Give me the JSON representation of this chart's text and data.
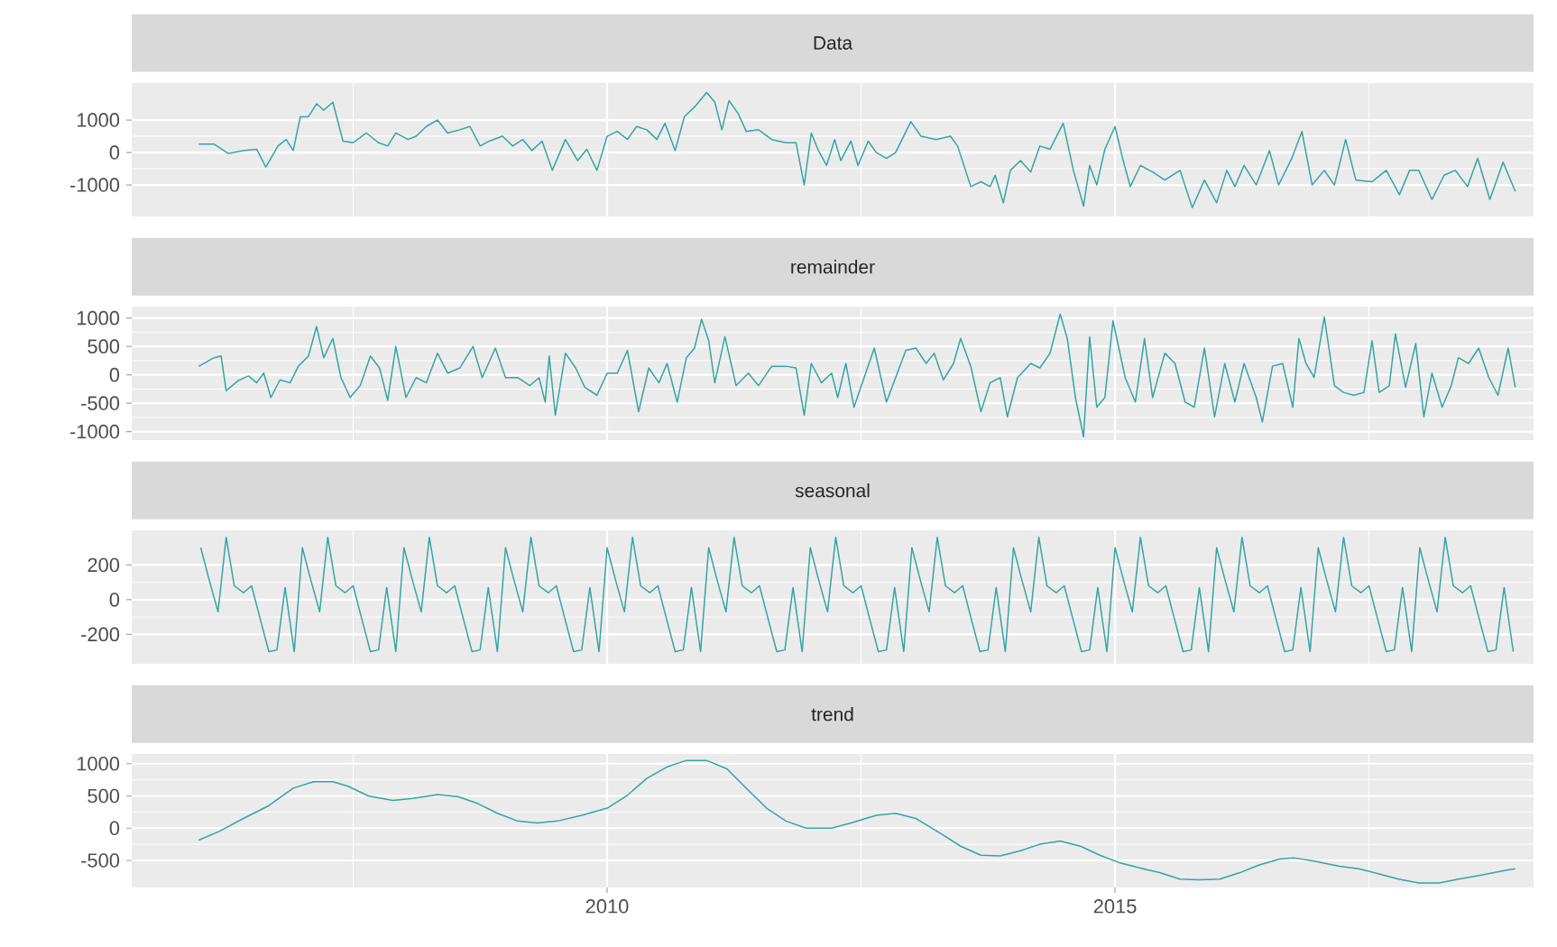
{
  "chart_data": [
    {
      "type": "line",
      "title": "Data",
      "color": "#35a4a4",
      "grid": true,
      "tick_labels": "y",
      "xlim": [
        2005.32,
        2019.12
      ],
      "ylim": [
        -1970,
        2140
      ],
      "xticks": [
        {
          "value": 2007.5,
          "label": null
        },
        2010,
        {
          "value": 2012.5,
          "label": null
        },
        2015,
        {
          "value": 2017.5,
          "label": null
        }
      ],
      "yticks": [
        -1000,
        0,
        1000
      ],
      "x": [
        2005.98,
        2006.13,
        2006.27,
        2006.42,
        2006.55,
        2006.64,
        2006.76,
        2006.84,
        2006.91,
        2006.98,
        2007.06,
        2007.14,
        2007.21,
        2007.3,
        2007.4,
        2007.5,
        2007.63,
        2007.75,
        2007.84,
        2007.92,
        2008.04,
        2008.12,
        2008.22,
        2008.33,
        2008.43,
        2008.55,
        2008.65,
        2008.75,
        2008.84,
        2008.97,
        2009.07,
        2009.17,
        2009.26,
        2009.36,
        2009.46,
        2009.59,
        2009.71,
        2009.8,
        2009.9,
        2010.0,
        2010.1,
        2010.2,
        2010.29,
        2010.39,
        2010.49,
        2010.57,
        2010.67,
        2010.76,
        2010.86,
        2010.98,
        2011.06,
        2011.13,
        2011.2,
        2011.29,
        2011.37,
        2011.49,
        2011.62,
        2011.76,
        2011.86,
        2011.94,
        2012.01,
        2012.08,
        2012.16,
        2012.24,
        2012.3,
        2012.4,
        2012.47,
        2012.57,
        2012.65,
        2012.75,
        2012.84,
        2012.99,
        2013.09,
        2013.24,
        2013.38,
        2013.45,
        2013.58,
        2013.68,
        2013.77,
        2013.82,
        2013.9,
        2013.97,
        2014.07,
        2014.17,
        2014.26,
        2014.36,
        2014.49,
        2014.59,
        2014.69,
        2014.75,
        2014.82,
        2014.9,
        2015.0,
        2015.08,
        2015.15,
        2015.25,
        2015.37,
        2015.49,
        2015.64,
        2015.76,
        2015.88,
        2016.0,
        2016.1,
        2016.18,
        2016.27,
        2016.39,
        2016.52,
        2016.61,
        2016.74,
        2016.84,
        2016.94,
        2017.06,
        2017.16,
        2017.27,
        2017.37,
        2017.53,
        2017.67,
        2017.8,
        2017.9,
        2017.99,
        2018.12,
        2018.24,
        2018.35,
        2018.47,
        2018.57,
        2018.69,
        2018.82,
        2018.94
      ],
      "values": [
        260,
        260,
        -30,
        60,
        100,
        -450,
        200,
        400,
        60,
        1100,
        1100,
        1500,
        1300,
        1550,
        350,
        300,
        600,
        300,
        200,
        600,
        400,
        500,
        800,
        1000,
        600,
        700,
        800,
        200,
        350,
        500,
        200,
        400,
        60,
        350,
        -550,
        400,
        -250,
        100,
        -550,
        500,
        650,
        400,
        800,
        700,
        400,
        900,
        60,
        1100,
        1400,
        1850,
        1550,
        700,
        1600,
        1200,
        650,
        700,
        400,
        300,
        300,
        -1000,
        600,
        60,
        -400,
        400,
        -250,
        350,
        -400,
        350,
        0,
        -180,
        0,
        950,
        500,
        400,
        500,
        200,
        -1050,
        -900,
        -1050,
        -700,
        -1550,
        -550,
        -250,
        -600,
        200,
        100,
        900,
        -550,
        -1650,
        -400,
        -1000,
        100,
        800,
        -250,
        -1050,
        -400,
        -600,
        -850,
        -550,
        -1700,
        -850,
        -1550,
        -550,
        -1050,
        -400,
        -1000,
        60,
        -1000,
        -180,
        650,
        -1000,
        -550,
        -1000,
        400,
        -850,
        -900,
        -550,
        -1300,
        -550,
        -550,
        -1450,
        -700,
        -550,
        -1050,
        -180,
        -1450,
        -300,
        -1200
      ]
    },
    {
      "type": "line",
      "title": "remainder",
      "color": "#35a4a4",
      "grid": true,
      "tick_labels": "y",
      "xlim": [
        2005.32,
        2019.12
      ],
      "ylim": [
        -1150,
        1200
      ],
      "xticks": [
        {
          "value": 2007.5,
          "label": null
        },
        2010,
        {
          "value": 2012.5,
          "label": null
        },
        2015,
        {
          "value": 2017.5,
          "label": null
        }
      ],
      "yticks": [
        -1000,
        -500,
        0,
        500,
        1000
      ],
      "x": [
        2005.98,
        2006.13,
        2006.2,
        2006.25,
        2006.37,
        2006.47,
        2006.55,
        2006.62,
        2006.69,
        2006.78,
        2006.88,
        2006.96,
        2007.06,
        2007.14,
        2007.21,
        2007.3,
        2007.38,
        2007.47,
        2007.57,
        2007.67,
        2007.76,
        2007.84,
        2007.92,
        2008.02,
        2008.12,
        2008.22,
        2008.33,
        2008.43,
        2008.55,
        2008.68,
        2008.77,
        2008.9,
        2009.0,
        2009.12,
        2009.24,
        2009.33,
        2009.39,
        2009.43,
        2009.49,
        2009.59,
        2009.69,
        2009.78,
        2009.9,
        2010.0,
        2010.1,
        2010.2,
        2010.31,
        2010.41,
        2010.51,
        2010.59,
        2010.69,
        2010.78,
        2010.86,
        2010.93,
        2011.0,
        2011.06,
        2011.16,
        2011.27,
        2011.39,
        2011.49,
        2011.62,
        2011.76,
        2011.86,
        2011.94,
        2012.01,
        2012.11,
        2012.21,
        2012.27,
        2012.35,
        2012.43,
        2012.53,
        2012.63,
        2012.75,
        2012.84,
        2012.94,
        2013.04,
        2013.14,
        2013.22,
        2013.31,
        2013.41,
        2013.48,
        2013.58,
        2013.68,
        2013.77,
        2013.87,
        2013.94,
        2014.04,
        2014.17,
        2014.26,
        2014.36,
        2014.46,
        2014.53,
        2014.61,
        2014.69,
        2014.75,
        2014.82,
        2014.9,
        2014.98,
        2015.1,
        2015.2,
        2015.29,
        2015.37,
        2015.49,
        2015.59,
        2015.69,
        2015.78,
        2015.88,
        2015.98,
        2016.08,
        2016.18,
        2016.27,
        2016.39,
        2016.45,
        2016.55,
        2016.65,
        2016.75,
        2016.81,
        2016.88,
        2016.96,
        2017.06,
        2017.16,
        2017.25,
        2017.35,
        2017.45,
        2017.53,
        2017.6,
        2017.7,
        2017.76,
        2017.86,
        2017.96,
        2018.04,
        2018.12,
        2018.22,
        2018.31,
        2018.38,
        2018.48,
        2018.58,
        2018.68,
        2018.77,
        2018.87,
        2018.94
      ],
      "values": [
        150,
        300,
        330,
        -280,
        -100,
        -20,
        -140,
        30,
        -400,
        -90,
        -140,
        150,
        330,
        850,
        300,
        640,
        -50,
        -400,
        -190,
        330,
        120,
        -450,
        500,
        -400,
        -50,
        -140,
        380,
        30,
        120,
        500,
        -50,
        470,
        -50,
        -50,
        -190,
        -50,
        -480,
        330,
        -710,
        380,
        120,
        -220,
        -360,
        30,
        30,
        430,
        -650,
        120,
        -140,
        200,
        -480,
        300,
        470,
        980,
        600,
        -140,
        670,
        -190,
        30,
        -190,
        150,
        150,
        120,
        -710,
        200,
        -140,
        30,
        -400,
        200,
        -570,
        -50,
        470,
        -480,
        -50,
        430,
        470,
        200,
        380,
        -90,
        200,
        640,
        150,
        -650,
        -140,
        -50,
        -740,
        -50,
        200,
        120,
        380,
        1070,
        640,
        -400,
        -1090,
        670,
        -570,
        -400,
        950,
        -50,
        -480,
        640,
        -400,
        380,
        200,
        -480,
        -570,
        470,
        -740,
        200,
        -480,
        200,
        -400,
        -830,
        150,
        200,
        -570,
        640,
        200,
        -50,
        1020,
        -190,
        -310,
        -360,
        -310,
        600,
        -310,
        -190,
        720,
        -220,
        550,
        -740,
        30,
        -570,
        -190,
        300,
        200,
        470,
        -50,
        -360,
        470,
        -220
      ]
    },
    {
      "type": "line",
      "title": "seasonal",
      "color": "#35a4a4",
      "grid": true,
      "tick_labels": "y",
      "xlim": [
        2005.32,
        2019.12
      ],
      "ylim": [
        -370,
        400
      ],
      "xticks": [
        {
          "value": 2007.5,
          "label": null
        },
        2010,
        {
          "value": 2012.5,
          "label": null
        },
        2015,
        {
          "value": 2017.5,
          "label": null
        }
      ],
      "yticks": [
        -200,
        0,
        200
      ],
      "x": [
        2006.0,
        2006.08,
        2006.17,
        2006.25,
        2006.33,
        2006.42,
        2006.5,
        2006.58,
        2006.67,
        2006.75,
        2006.83,
        2006.92,
        2007.0,
        2007.08,
        2007.17,
        2007.25,
        2007.33,
        2007.42,
        2007.5,
        2007.58,
        2007.67,
        2007.75,
        2007.83,
        2007.92,
        2008.0,
        2008.08,
        2008.17,
        2008.25,
        2008.33,
        2008.42,
        2008.5,
        2008.58,
        2008.67,
        2008.75,
        2008.83,
        2008.92,
        2009.0,
        2009.08,
        2009.17,
        2009.25,
        2009.33,
        2009.42,
        2009.5,
        2009.58,
        2009.67,
        2009.75,
        2009.83,
        2009.92,
        2010.0,
        2010.08,
        2010.17,
        2010.25,
        2010.33,
        2010.42,
        2010.5,
        2010.58,
        2010.67,
        2010.75,
        2010.83,
        2010.92,
        2011.0,
        2011.08,
        2011.17,
        2011.25,
        2011.33,
        2011.42,
        2011.5,
        2011.58,
        2011.67,
        2011.75,
        2011.83,
        2011.92,
        2012.0,
        2012.08,
        2012.17,
        2012.25,
        2012.33,
        2012.42,
        2012.5,
        2012.58,
        2012.67,
        2012.75,
        2012.83,
        2012.92,
        2013.0,
        2013.08,
        2013.17,
        2013.25,
        2013.33,
        2013.42,
        2013.5,
        2013.58,
        2013.67,
        2013.75,
        2013.83,
        2013.92,
        2014.0,
        2014.08,
        2014.17,
        2014.25,
        2014.33,
        2014.42,
        2014.5,
        2014.58,
        2014.67,
        2014.75,
        2014.83,
        2014.92,
        2015.0,
        2015.08,
        2015.17,
        2015.25,
        2015.33,
        2015.42,
        2015.5,
        2015.58,
        2015.67,
        2015.75,
        2015.83,
        2015.92,
        2016.0,
        2016.08,
        2016.17,
        2016.25,
        2016.33,
        2016.42,
        2016.5,
        2016.58,
        2016.67,
        2016.75,
        2016.83,
        2016.92,
        2017.0,
        2017.08,
        2017.17,
        2017.25,
        2017.33,
        2017.42,
        2017.5,
        2017.58,
        2017.67,
        2017.75,
        2017.83,
        2017.92,
        2018.0,
        2018.08,
        2018.17,
        2018.25,
        2018.33,
        2018.42,
        2018.5,
        2018.58,
        2018.67,
        2018.75,
        2018.83,
        2018.92
      ],
      "values": [
        300,
        120,
        -70,
        360,
        80,
        40,
        80,
        -100,
        -300,
        -290,
        70,
        -300,
        300,
        120,
        -70,
        360,
        80,
        40,
        80,
        -100,
        -300,
        -290,
        70,
        -300,
        300,
        120,
        -70,
        360,
        80,
        40,
        80,
        -100,
        -300,
        -290,
        70,
        -300,
        300,
        120,
        -70,
        360,
        80,
        40,
        80,
        -100,
        -300,
        -290,
        70,
        -300,
        300,
        120,
        -70,
        360,
        80,
        40,
        80,
        -100,
        -300,
        -290,
        70,
        -300,
        300,
        120,
        -70,
        360,
        80,
        40,
        80,
        -100,
        -300,
        -290,
        70,
        -300,
        300,
        120,
        -70,
        360,
        80,
        40,
        80,
        -100,
        -300,
        -290,
        70,
        -300,
        300,
        120,
        -70,
        360,
        80,
        40,
        80,
        -100,
        -300,
        -290,
        70,
        -300,
        300,
        120,
        -70,
        360,
        80,
        40,
        80,
        -100,
        -300,
        -290,
        70,
        -300,
        300,
        120,
        -70,
        360,
        80,
        40,
        80,
        -100,
        -300,
        -290,
        70,
        -300,
        300,
        120,
        -70,
        360,
        80,
        40,
        80,
        -100,
        -300,
        -290,
        70,
        -300,
        300,
        120,
        -70,
        360,
        80,
        40,
        80,
        -100,
        -300,
        -290,
        70,
        -300,
        300,
        120,
        -70,
        360,
        80,
        40,
        80,
        -100,
        -300,
        -290,
        70,
        -300
      ]
    },
    {
      "type": "line",
      "title": "trend",
      "color": "#35a4a4",
      "grid": true,
      "xlim": [
        2005.32,
        2019.12
      ],
      "ylim": [
        -920,
        1150
      ],
      "xticks": [
        {
          "value": 2007.5,
          "label": null
        },
        2010,
        {
          "value": 2012.5,
          "label": null
        },
        2015,
        {
          "value": 2017.5,
          "label": null
        }
      ],
      "yticks": [
        -500,
        0,
        500,
        1000
      ],
      "x": [
        2005.98,
        2006.18,
        2006.42,
        2006.67,
        2006.91,
        2007.11,
        2007.3,
        2007.45,
        2007.65,
        2007.89,
        2008.09,
        2008.33,
        2008.53,
        2008.73,
        2008.92,
        2009.12,
        2009.31,
        2009.51,
        2009.75,
        2010.0,
        2010.2,
        2010.39,
        2010.59,
        2010.78,
        2010.98,
        2011.18,
        2011.37,
        2011.57,
        2011.76,
        2011.96,
        2012.21,
        2012.4,
        2012.65,
        2012.84,
        2013.04,
        2013.28,
        2013.48,
        2013.68,
        2013.87,
        2014.07,
        2014.26,
        2014.46,
        2014.66,
        2014.85,
        2015.05,
        2015.25,
        2015.44,
        2015.64,
        2015.83,
        2016.03,
        2016.23,
        2016.42,
        2016.62,
        2016.76,
        2016.96,
        2017.21,
        2017.4,
        2017.6,
        2017.79,
        2017.99,
        2018.19,
        2018.38,
        2018.63,
        2018.82,
        2018.94
      ],
      "values": [
        -185,
        -50,
        150,
        350,
        620,
        720,
        720,
        650,
        500,
        430,
        460,
        520,
        490,
        380,
        230,
        110,
        80,
        110,
        200,
        310,
        510,
        770,
        950,
        1050,
        1050,
        920,
        620,
        310,
        110,
        0,
        0,
        80,
        200,
        230,
        150,
        -80,
        -280,
        -420,
        -430,
        -350,
        -250,
        -200,
        -280,
        -420,
        -540,
        -620,
        -690,
        -790,
        -800,
        -790,
        -690,
        -570,
        -480,
        -460,
        -510,
        -590,
        -630,
        -710,
        -790,
        -850,
        -850,
        -790,
        -720,
        -660,
        -630
      ]
    }
  ]
}
